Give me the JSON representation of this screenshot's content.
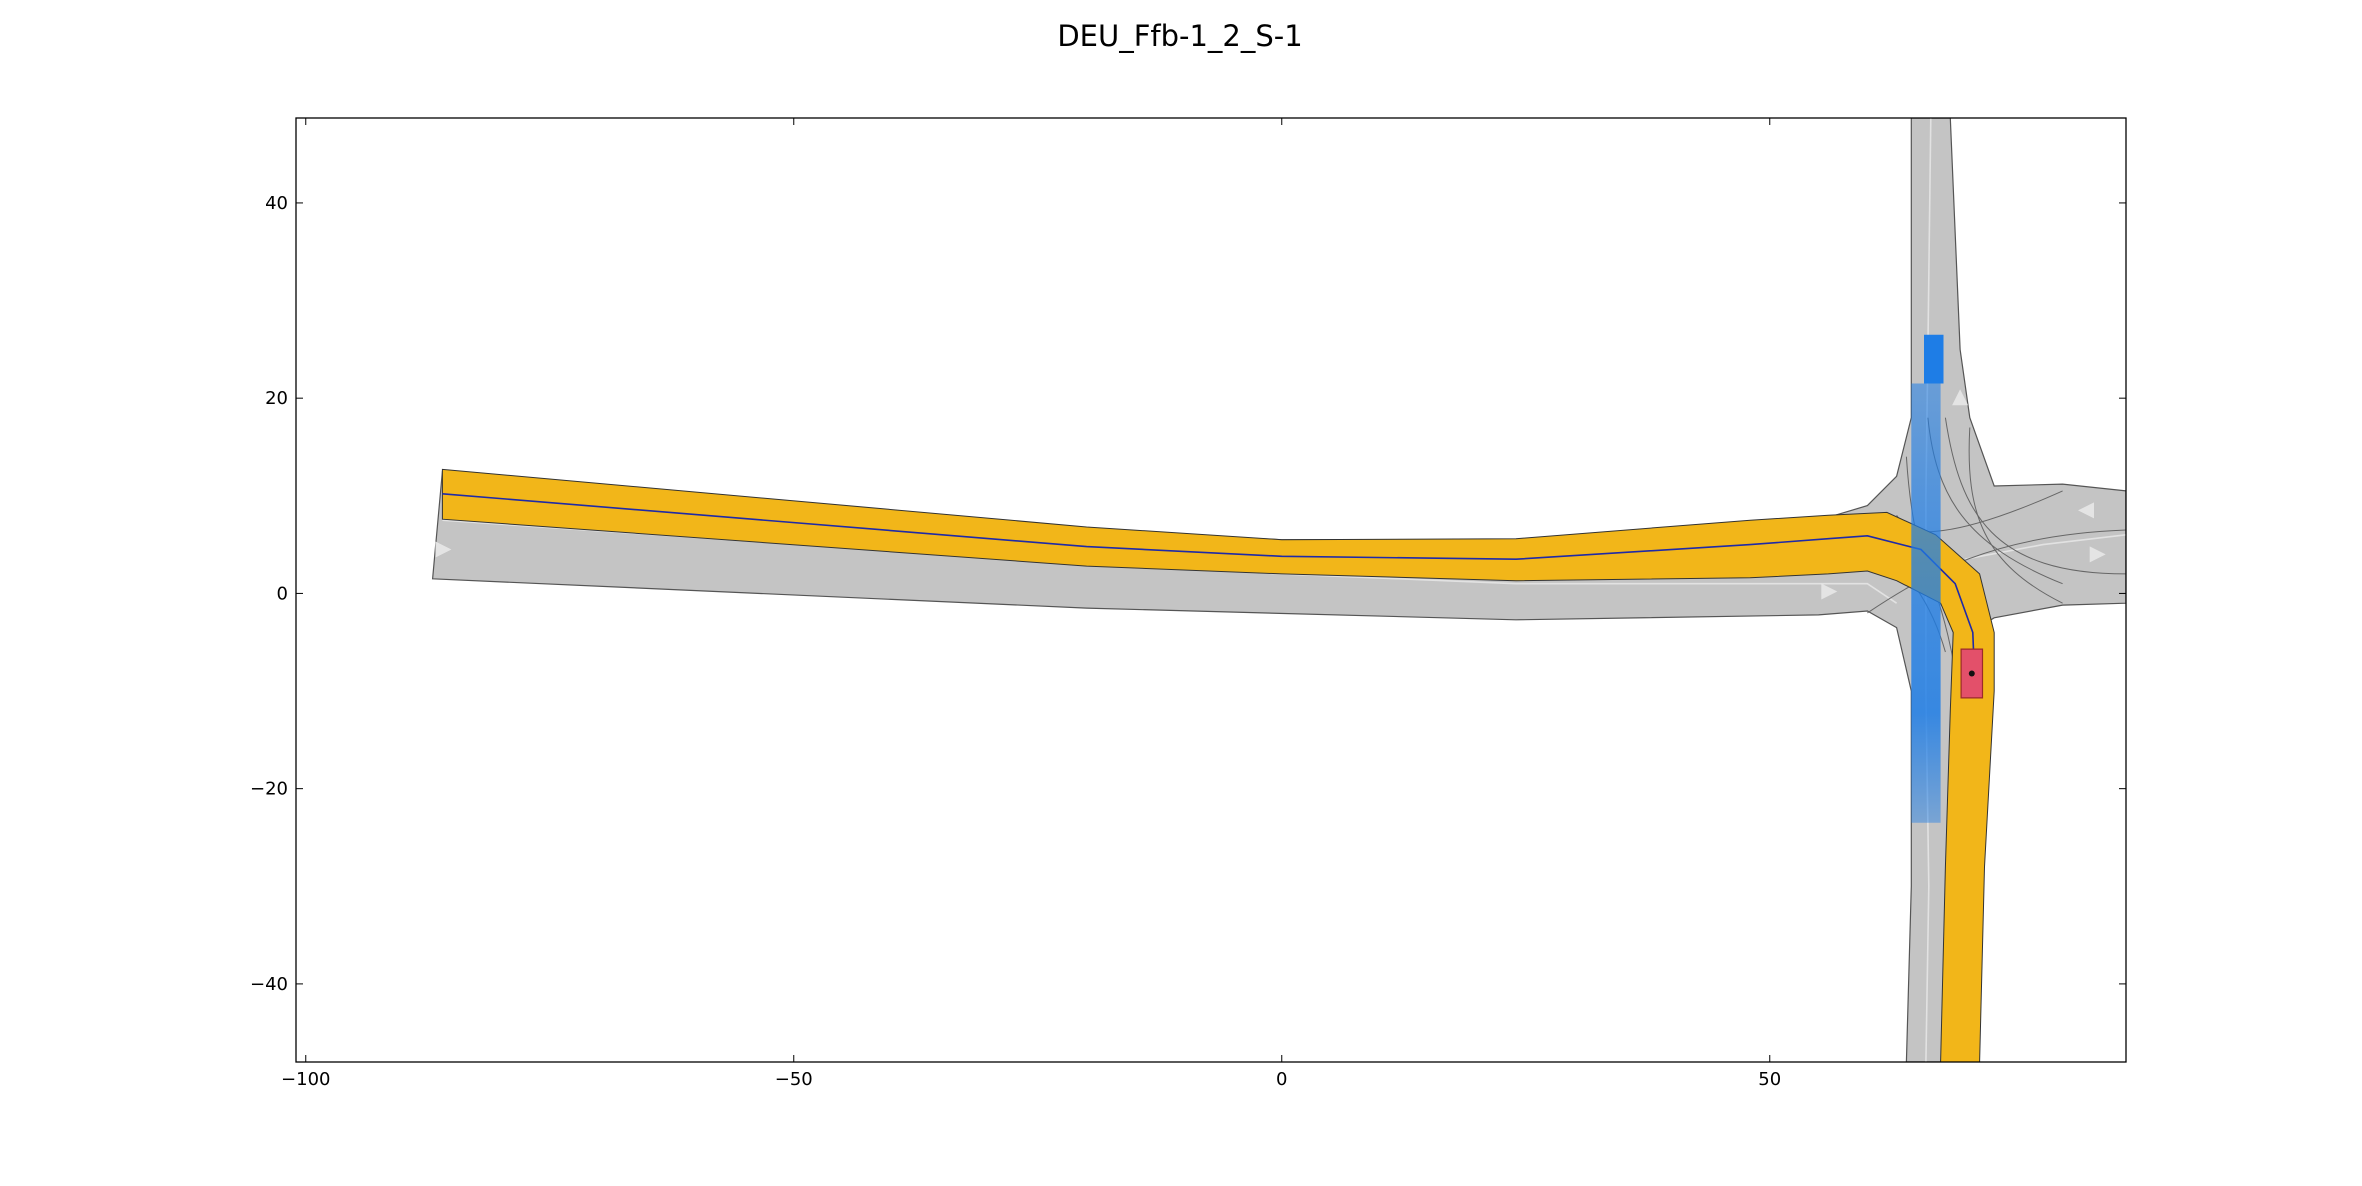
{
  "title": "DEU_Ffb-1_2_S-1",
  "axes": {
    "xlim": [
      -101,
      86.5
    ],
    "ylim": [
      -48,
      48.7
    ],
    "x_ticks": [
      {
        "value": -100,
        "label": "−100"
      },
      {
        "value": -50,
        "label": "−50"
      },
      {
        "value": 0,
        "label": "0"
      },
      {
        "value": 50,
        "label": "50"
      }
    ],
    "y_ticks": [
      {
        "value": 40,
        "label": "40"
      },
      {
        "value": 20,
        "label": "20"
      },
      {
        "value": 0,
        "label": "0"
      },
      {
        "value": -20,
        "label": "−20"
      },
      {
        "value": -40,
        "label": "−40"
      }
    ]
  },
  "colors": {
    "road": "#c4c4c4",
    "road_edge": "#555555",
    "lane_marking": "#e2e2e2",
    "planned_route": "#f2b619",
    "route_centerline": "#1f2aa8",
    "obstacle_vehicle": "#1e7de6",
    "ego_vehicle": "#e3506a"
  },
  "map": {
    "road_polygons": [
      [
        [
          -87,
          1.5
        ],
        [
          -20,
          -1.5
        ],
        [
          24,
          -2.7
        ],
        [
          55,
          -2.2
        ],
        [
          60,
          -1.8
        ],
        [
          63,
          -3.5
        ],
        [
          64.5,
          -10
        ],
        [
          64.5,
          -30
        ],
        [
          64,
          -48
        ],
        [
          68,
          -48
        ],
        [
          68.5,
          -30
        ],
        [
          69,
          -10
        ],
        [
          70.5,
          -4
        ],
        [
          73,
          -2.5
        ],
        [
          80,
          -1.2
        ],
        [
          86.5,
          -1
        ],
        [
          86.5,
          10.5
        ],
        [
          80,
          11.2
        ],
        [
          73,
          11
        ],
        [
          70.5,
          18
        ],
        [
          69.5,
          25
        ],
        [
          68.5,
          48.7
        ],
        [
          64.5,
          48.7
        ],
        [
          64.5,
          25
        ],
        [
          64.5,
          18
        ],
        [
          63,
          12
        ],
        [
          60,
          9
        ],
        [
          55,
          7.5
        ],
        [
          24,
          5.5
        ],
        [
          0,
          5.5
        ],
        [
          -20,
          6.5
        ],
        [
          -86,
          12.5
        ]
      ]
    ],
    "lane_dividers": [
      [
        [
          -86,
          7.5
        ],
        [
          -20,
          3
        ],
        [
          0,
          2
        ],
        [
          24,
          1
        ],
        [
          55,
          1
        ],
        [
          60,
          1
        ],
        [
          63,
          -1
        ]
      ],
      [
        [
          66.5,
          48.7
        ],
        [
          66.2,
          25
        ],
        [
          66,
          10
        ],
        [
          66,
          -10
        ],
        [
          66.3,
          -30
        ],
        [
          66,
          -48
        ]
      ],
      [
        [
          70,
          3.5
        ],
        [
          78,
          5
        ],
        [
          86.5,
          6
        ]
      ]
    ],
    "junction_curves": [
      [
        [
          60,
          8
        ],
        [
          64,
          5
        ],
        [
          70,
          6
        ],
        [
          80,
          10.5
        ]
      ],
      [
        [
          60,
          -2
        ],
        [
          66,
          2
        ],
        [
          73,
          6
        ],
        [
          86.5,
          6.5
        ]
      ],
      [
        [
          66.2,
          18
        ],
        [
          67,
          10
        ],
        [
          70,
          5
        ],
        [
          80,
          1
        ]
      ],
      [
        [
          68,
          18
        ],
        [
          69.5,
          8
        ],
        [
          73,
          2
        ],
        [
          86.5,
          2
        ]
      ],
      [
        [
          63,
          8
        ],
        [
          66,
          4
        ],
        [
          68,
          -2
        ],
        [
          69,
          -8
        ]
      ],
      [
        [
          64,
          14
        ],
        [
          64.5,
          6
        ],
        [
          66,
          0
        ],
        [
          70,
          -3
        ]
      ],
      [
        [
          70.5,
          17
        ],
        [
          70,
          8
        ],
        [
          72,
          3
        ],
        [
          80,
          -1
        ]
      ],
      [
        [
          56,
          7.5
        ],
        [
          62,
          5
        ],
        [
          66,
          1
        ],
        [
          68,
          -6
        ]
      ]
    ],
    "direction_arrows": [
      {
        "x": -86,
        "y": 4.5,
        "angle": 0
      },
      {
        "x": 56,
        "y": 0.2,
        "angle": 0
      },
      {
        "x": 83.5,
        "y": 4,
        "angle": 0
      },
      {
        "x": 82.5,
        "y": 8.5,
        "angle": 180
      },
      {
        "x": 69.5,
        "y": 20,
        "angle": 90
      }
    ]
  },
  "route": {
    "polygon": [
      [
        -86,
        12.7
      ],
      [
        -20,
        6.8
      ],
      [
        0,
        5.5
      ],
      [
        24,
        5.6
      ],
      [
        48,
        7.5
      ],
      [
        56,
        8
      ],
      [
        62,
        8.3
      ],
      [
        67,
        6
      ],
      [
        71.5,
        2
      ],
      [
        73,
        -4
      ],
      [
        73,
        -10
      ],
      [
        72,
        -28
      ],
      [
        71.5,
        -48
      ],
      [
        67.5,
        -48
      ],
      [
        68,
        -28
      ],
      [
        68.5,
        -12
      ],
      [
        68.8,
        -4
      ],
      [
        67.5,
        -1
      ],
      [
        63,
        1.3
      ],
      [
        60,
        2.3
      ],
      [
        56,
        2
      ],
      [
        48,
        1.6
      ],
      [
        24,
        1.3
      ],
      [
        0,
        2
      ],
      [
        -20,
        2.8
      ],
      [
        -86,
        7.6
      ]
    ],
    "centerline": [
      [
        -86,
        10.2
      ],
      [
        -20,
        4.8
      ],
      [
        0,
        3.8
      ],
      [
        24,
        3.5
      ],
      [
        48,
        5
      ],
      [
        56,
        5.6
      ],
      [
        60,
        5.9
      ],
      [
        65.5,
        4.5
      ],
      [
        69,
        1
      ],
      [
        70.8,
        -4
      ],
      [
        71,
        -9
      ]
    ]
  },
  "obstacle_vehicle": {
    "current_box": [
      [
        65.8,
        21.5
      ],
      [
        67.8,
        21.5
      ],
      [
        67.8,
        26.5
      ],
      [
        65.8,
        26.5
      ]
    ],
    "predicted_occupancy": [
      [
        64.5,
        21.5
      ],
      [
        67.5,
        21.5
      ],
      [
        67.5,
        -23.5
      ],
      [
        64.5,
        -23.5
      ]
    ]
  },
  "ego_vehicle": {
    "box": [
      [
        69.6,
        -10.7
      ],
      [
        71.8,
        -10.7
      ],
      [
        71.8,
        -5.7
      ],
      [
        69.6,
        -5.7
      ]
    ],
    "center": [
      70.7,
      -8.2
    ]
  }
}
